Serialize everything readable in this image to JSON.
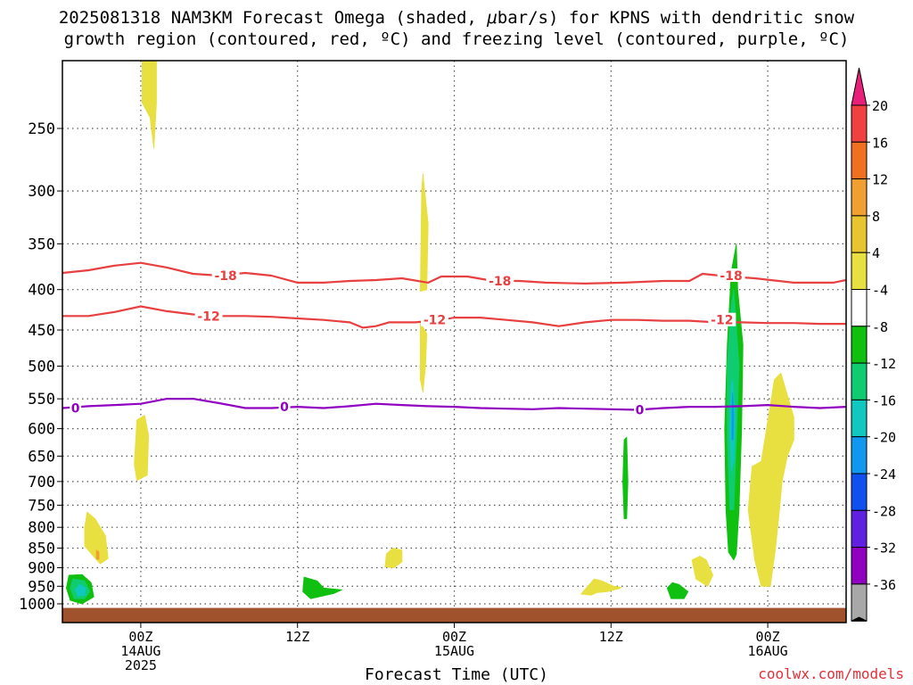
{
  "title": {
    "line1_pre": "2025081318 NAM3KM Forecast Omega (shaded, ",
    "line1_mu": "μ",
    "line1_post": "bar/s) for KPNS with dendritic snow",
    "line2": "growth region (contoured, red, ºC) and freezing level (contoured, purple, ºC)"
  },
  "credit": "coolwx.com/models",
  "chart_data": {
    "type": "heatmap",
    "title": "2025081318 NAM3KM Forecast Omega (shaded, μbar/s) for KPNS with dendritic snow growth region (contoured, red, ºC) and freezing level (contoured, purple, ºC)",
    "xlabel": "Forecast Time (UTC)",
    "ylabel": "",
    "x_unit": "forecast hours from 2025-08-13 18Z",
    "xlim": [
      0,
      60
    ],
    "ylim_hPa": [
      1025,
      200
    ],
    "y_scale": "log-pressure (reversed)",
    "grid": "dotted",
    "y_ticks": [
      250,
      300,
      350,
      400,
      450,
      500,
      550,
      600,
      650,
      700,
      750,
      800,
      850,
      900,
      950,
      1000
    ],
    "x_ticks": [
      {
        "h": 6,
        "lines": [
          "00Z",
          "14AUG",
          "2025"
        ]
      },
      {
        "h": 18,
        "lines": [
          "12Z"
        ]
      },
      {
        "h": 30,
        "lines": [
          "00Z",
          "15AUG"
        ]
      },
      {
        "h": 42,
        "lines": [
          "12Z"
        ]
      },
      {
        "h": 54,
        "lines": [
          "00Z",
          "16AUG"
        ]
      }
    ],
    "colorbar": {
      "unit": "μbar/s",
      "labels": [
        "20",
        "16",
        "12",
        "8",
        "4",
        "-4",
        "-8",
        "-12",
        "-16",
        "-20",
        "-24",
        "-28",
        "-32",
        "-36"
      ],
      "colors": [
        "#e8207a",
        "#f04040",
        "#f07020",
        "#f0a030",
        "#e8c430",
        "#e8e040",
        "#ffffff",
        "#10c010",
        "#10cc70",
        "#10c8c0",
        "#1098f0",
        "#1050f0",
        "#6020e0",
        "#9000c0",
        "#a8a8a8",
        "#000000"
      ]
    },
    "surface_pressure_hPa": 1012,
    "contours": [
      {
        "name": "-18",
        "color": "#e84040",
        "points": [
          [
            0,
            381
          ],
          [
            2,
            378
          ],
          [
            4,
            373
          ],
          [
            6,
            370
          ],
          [
            8,
            375
          ],
          [
            10,
            382
          ],
          [
            12,
            384
          ],
          [
            14,
            381
          ],
          [
            16,
            384
          ],
          [
            18,
            392
          ],
          [
            20,
            392
          ],
          [
            22,
            390
          ],
          [
            24,
            389
          ],
          [
            26,
            387
          ],
          [
            28,
            392
          ],
          [
            29,
            385
          ],
          [
            31,
            385
          ],
          [
            33,
            390
          ],
          [
            35,
            390
          ],
          [
            37,
            392
          ],
          [
            40,
            393
          ],
          [
            43,
            392
          ],
          [
            46,
            390
          ],
          [
            48,
            390
          ],
          [
            49,
            382
          ],
          [
            51,
            385
          ],
          [
            53,
            387
          ],
          [
            56,
            392
          ],
          [
            59,
            392
          ],
          [
            60,
            389
          ]
        ],
        "labels": [
          {
            "x": 12.5,
            "p": 384
          },
          {
            "x": 33.5,
            "p": 390
          },
          {
            "x": 51.2,
            "p": 384
          }
        ]
      },
      {
        "name": "-12",
        "color": "#e84040",
        "points": [
          [
            0,
            432
          ],
          [
            2,
            432
          ],
          [
            4,
            427
          ],
          [
            6,
            420
          ],
          [
            8,
            426
          ],
          [
            10,
            430
          ],
          [
            12,
            432
          ],
          [
            14,
            432
          ],
          [
            16,
            433
          ],
          [
            18,
            435
          ],
          [
            20,
            437
          ],
          [
            22,
            440
          ],
          [
            23,
            447
          ],
          [
            24,
            445
          ],
          [
            25,
            440
          ],
          [
            27,
            440
          ],
          [
            29,
            437
          ],
          [
            30,
            434
          ],
          [
            32,
            434
          ],
          [
            34,
            437
          ],
          [
            36,
            440
          ],
          [
            38,
            445
          ],
          [
            40,
            440
          ],
          [
            42,
            437
          ],
          [
            44,
            437
          ],
          [
            46,
            438
          ],
          [
            48,
            438
          ],
          [
            50,
            440
          ],
          [
            52,
            440
          ],
          [
            54,
            441
          ],
          [
            56,
            441
          ],
          [
            58,
            442
          ],
          [
            60,
            442
          ]
        ],
        "labels": [
          {
            "x": 11.2,
            "p": 432
          },
          {
            "x": 28.5,
            "p": 437
          },
          {
            "x": 50.5,
            "p": 437
          }
        ]
      },
      {
        "name": "0",
        "color": "#9000c0",
        "points": [
          [
            0,
            565
          ],
          [
            2,
            562
          ],
          [
            4,
            560
          ],
          [
            6,
            558
          ],
          [
            8,
            550
          ],
          [
            10,
            550
          ],
          [
            12,
            557
          ],
          [
            14,
            565
          ],
          [
            16,
            565
          ],
          [
            18,
            563
          ],
          [
            20,
            565
          ],
          [
            22,
            562
          ],
          [
            24,
            558
          ],
          [
            26,
            560
          ],
          [
            28,
            562
          ],
          [
            30,
            563
          ],
          [
            32,
            565
          ],
          [
            34,
            566
          ],
          [
            36,
            567
          ],
          [
            38,
            565
          ],
          [
            40,
            566
          ],
          [
            42,
            567
          ],
          [
            44,
            568
          ],
          [
            46,
            565
          ],
          [
            48,
            563
          ],
          [
            50,
            563
          ],
          [
            52,
            562
          ],
          [
            54,
            560
          ],
          [
            56,
            563
          ],
          [
            58,
            565
          ],
          [
            60,
            563
          ]
        ],
        "labels": [
          {
            "x": 1,
            "p": 565
          },
          {
            "x": 17,
            "p": 563
          },
          {
            "x": 44.2,
            "p": 568
          }
        ]
      }
    ],
    "shaded_regions": [
      {
        "value": 4,
        "color": "#e8e040",
        "polygon": [
          [
            6.1,
            200
          ],
          [
            7.2,
            200
          ],
          [
            7.2,
            232
          ],
          [
            7.0,
            265
          ],
          [
            6.7,
            242
          ],
          [
            6.1,
            232
          ]
        ]
      },
      {
        "value": 4,
        "color": "#e8e040",
        "polygon": [
          [
            5.7,
            585
          ],
          [
            6.3,
            577
          ],
          [
            6.6,
            612
          ],
          [
            6.5,
            687
          ],
          [
            5.7,
            698
          ],
          [
            5.5,
            665
          ]
        ]
      },
      {
        "value": 4,
        "color": "#e8e040",
        "polygon": [
          [
            1.9,
            765
          ],
          [
            2.5,
            780
          ],
          [
            3.3,
            820
          ],
          [
            3.5,
            876
          ],
          [
            2.9,
            890
          ],
          [
            2.5,
            875
          ],
          [
            1.7,
            845
          ],
          [
            1.7,
            800
          ]
        ]
      },
      {
        "value": 4,
        "color": "#e8e040",
        "polygon": [
          [
            27.6,
            285
          ],
          [
            28.0,
            330
          ],
          [
            27.9,
            400
          ],
          [
            27.4,
            402
          ],
          [
            27.5,
            300
          ]
        ]
      },
      {
        "value": 4,
        "color": "#e8e040",
        "polygon": [
          [
            27.4,
            440
          ],
          [
            27.9,
            455
          ],
          [
            27.8,
            500
          ],
          [
            27.6,
            540
          ],
          [
            27.4,
            520
          ]
        ]
      },
      {
        "value": 4,
        "color": "#e8e040",
        "polygon": [
          [
            25.3,
            850
          ],
          [
            26.0,
            855
          ],
          [
            26.0,
            885
          ],
          [
            25.4,
            900
          ],
          [
            24.7,
            898
          ],
          [
            24.8,
            865
          ]
        ]
      },
      {
        "value": 4,
        "color": "#e8e040",
        "polygon": [
          [
            40.7,
            930
          ],
          [
            41.3,
            935
          ],
          [
            42.2,
            950
          ],
          [
            42.8,
            953
          ],
          [
            42.6,
            957
          ],
          [
            41.7,
            965
          ],
          [
            40.9,
            968
          ],
          [
            40.5,
            975
          ],
          [
            39.7,
            972
          ]
        ]
      },
      {
        "value": 4,
        "color": "#e8e040",
        "polygon": [
          [
            55.0,
            510
          ],
          [
            56.0,
            580
          ],
          [
            56.0,
            620
          ],
          [
            55.5,
            650
          ],
          [
            55.1,
            700
          ],
          [
            54.9,
            760
          ],
          [
            54.6,
            850
          ],
          [
            54.2,
            950
          ],
          [
            53.5,
            950
          ],
          [
            53.0,
            880
          ],
          [
            52.5,
            760
          ],
          [
            52.8,
            670
          ],
          [
            53.5,
            660
          ],
          [
            54.2,
            560
          ],
          [
            54.5,
            520
          ]
        ]
      },
      {
        "value": 4,
        "color": "#e8e040",
        "polygon": [
          [
            48.8,
            870
          ],
          [
            49.3,
            880
          ],
          [
            49.8,
            920
          ],
          [
            49.4,
            950
          ],
          [
            48.5,
            930
          ],
          [
            48.2,
            880
          ]
        ]
      },
      {
        "value": -4,
        "color": "#10c010",
        "polygon": [
          [
            51.6,
            350
          ],
          [
            51.7,
            400
          ],
          [
            52.1,
            470
          ],
          [
            52.0,
            600
          ],
          [
            51.8,
            760
          ],
          [
            51.6,
            865
          ],
          [
            51.4,
            880
          ],
          [
            51.0,
            860
          ],
          [
            50.8,
            760
          ],
          [
            50.7,
            600
          ],
          [
            50.9,
            470
          ],
          [
            51.2,
            380
          ]
        ]
      },
      {
        "value": -4,
        "color": "#10c010",
        "polygon": [
          [
            43.2,
            615
          ],
          [
            43.3,
            700
          ],
          [
            43.2,
            780
          ],
          [
            43.0,
            780
          ],
          [
            42.9,
            700
          ],
          [
            43.0,
            620
          ]
        ]
      },
      {
        "value": -4,
        "color": "#10c010",
        "polygon": [
          [
            0.5,
            920
          ],
          [
            1.5,
            918
          ],
          [
            2.2,
            940
          ],
          [
            2.4,
            980
          ],
          [
            1.5,
            1000
          ],
          [
            0.6,
            990
          ],
          [
            0.3,
            955
          ]
        ]
      },
      {
        "value": -4,
        "color": "#10c010",
        "polygon": [
          [
            18.5,
            925
          ],
          [
            19.5,
            935
          ],
          [
            20,
            955
          ],
          [
            21.4,
            960
          ],
          [
            20.8,
            970
          ],
          [
            19,
            985
          ],
          [
            18.4,
            965
          ]
        ]
      },
      {
        "value": -4,
        "color": "#10c010",
        "polygon": [
          [
            46.7,
            940
          ],
          [
            47.2,
            945
          ],
          [
            47.9,
            965
          ],
          [
            47.6,
            985
          ],
          [
            46.6,
            985
          ],
          [
            46.3,
            955
          ]
        ]
      },
      {
        "value": -8,
        "color": "#10cc70",
        "polygon": [
          [
            51.4,
            400
          ],
          [
            51.8,
            500
          ],
          [
            51.6,
            620
          ],
          [
            51.4,
            760
          ],
          [
            51.1,
            760
          ],
          [
            50.9,
            620
          ],
          [
            50.9,
            500
          ],
          [
            51.2,
            420
          ]
        ]
      },
      {
        "value": -8,
        "color": "#10cc70",
        "polygon": [
          [
            0.8,
            930
          ],
          [
            1.7,
            935
          ],
          [
            2.1,
            965
          ],
          [
            1.7,
            985
          ],
          [
            0.9,
            985
          ],
          [
            0.6,
            955
          ]
        ]
      },
      {
        "value": -12,
        "color": "#10c8c0",
        "polygon": [
          [
            1.3,
            945
          ],
          [
            1.8,
            955
          ],
          [
            1.7,
            975
          ],
          [
            1.2,
            978
          ],
          [
            1.0,
            960
          ]
        ]
      },
      {
        "value": -12,
        "color": "#10c8c0",
        "polygon": [
          [
            51.3,
            520
          ],
          [
            51.5,
            580
          ],
          [
            51.4,
            660
          ],
          [
            51.2,
            680
          ],
          [
            51.1,
            600
          ],
          [
            51.2,
            530
          ]
        ]
      },
      {
        "value": -16,
        "color": "#1098f0",
        "polygon": [
          [
            51.32,
            540
          ],
          [
            51.4,
            580
          ],
          [
            51.35,
            620
          ],
          [
            51.25,
            620
          ],
          [
            51.26,
            560
          ]
        ]
      },
      {
        "value": 8,
        "color": "#f0a030",
        "polygon": [
          [
            2.6,
            855
          ],
          [
            2.8,
            860
          ],
          [
            2.8,
            878
          ],
          [
            2.6,
            878
          ]
        ]
      }
    ]
  }
}
